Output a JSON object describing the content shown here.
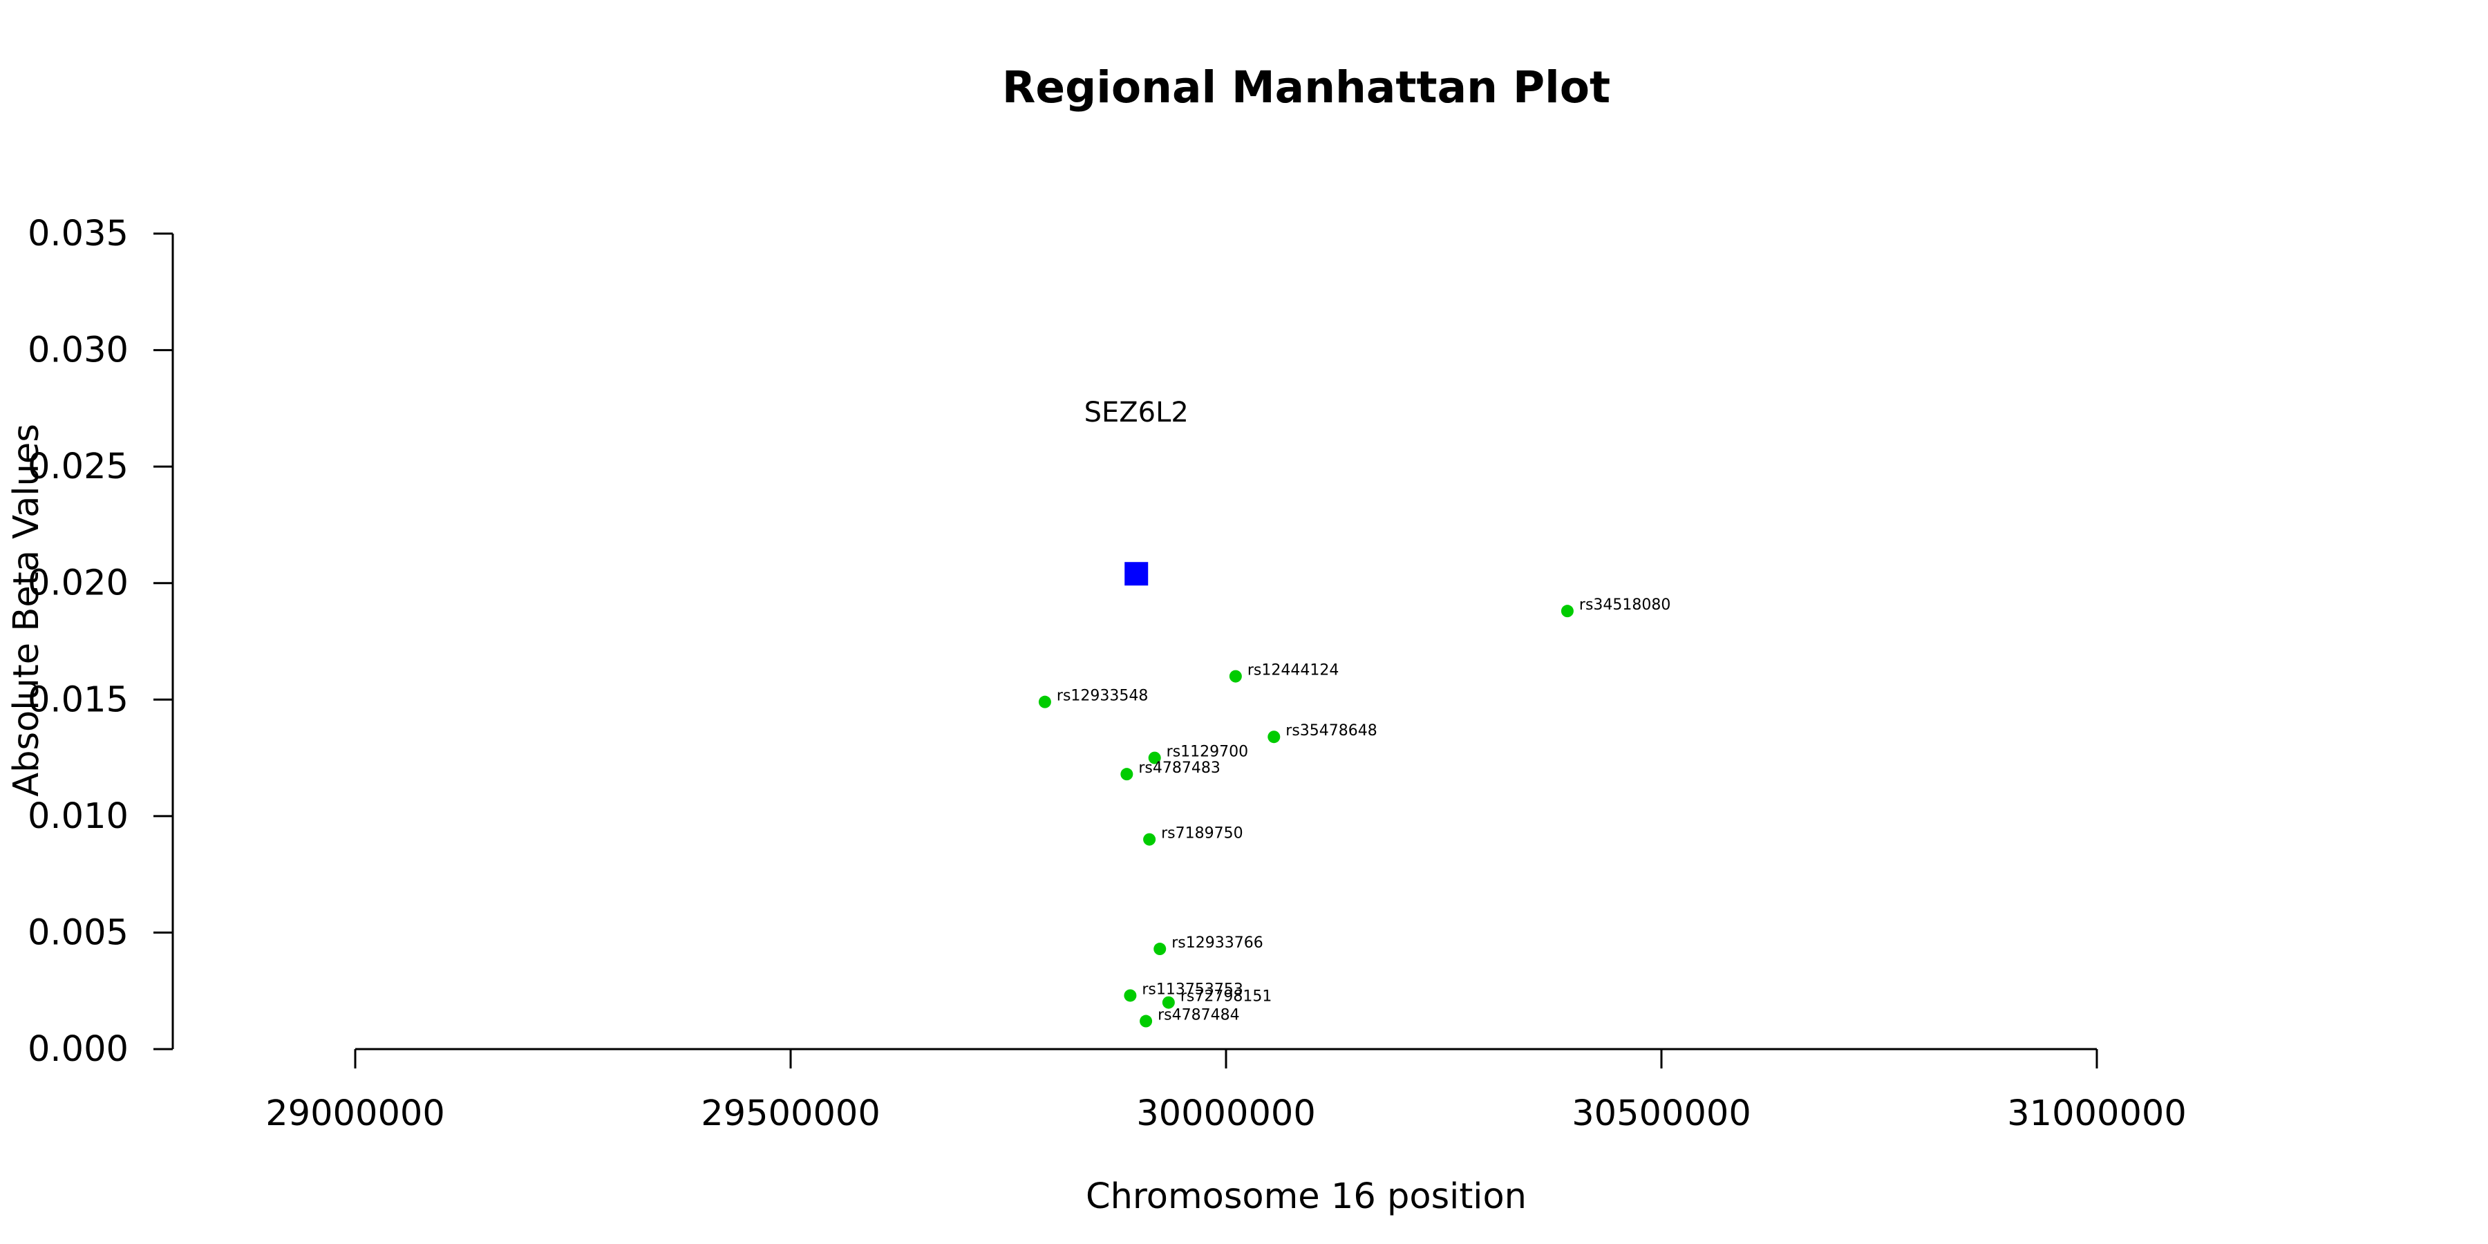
{
  "chart_data": {
    "type": "scatter",
    "title": "Regional Manhattan Plot",
    "xlabel": "Chromosome 16 position",
    "ylabel": "Absolute Beta Values",
    "xlim": [
      29000000,
      31000000
    ],
    "ylim": [
      0.0,
      0.035
    ],
    "x_ticks": [
      29000000,
      29500000,
      30000000,
      30500000,
      31000000
    ],
    "x_tick_labels": [
      "29000000",
      "29500000",
      "30000000",
      "30500000",
      "31000000"
    ],
    "y_ticks": [
      0.0,
      0.005,
      0.01,
      0.015,
      0.02,
      0.025,
      0.03,
      0.035
    ],
    "y_tick_labels": [
      "0.000",
      "0.005",
      "0.010",
      "0.015",
      "0.020",
      "0.025",
      "0.030",
      "0.035"
    ],
    "grid": false,
    "colors": {
      "gene": "#0000ff",
      "snp": "#00cc00"
    },
    "gene": {
      "name": "SEZ6L2",
      "x": 29897000,
      "y": 0.0204
    },
    "points": [
      {
        "label": "rs34518080",
        "x": 30392000,
        "y": 0.0188
      },
      {
        "label": "rs12444124",
        "x": 30011000,
        "y": 0.016
      },
      {
        "label": "rs12933548",
        "x": 29792000,
        "y": 0.0149
      },
      {
        "label": "rs35478648",
        "x": 30055000,
        "y": 0.0134
      },
      {
        "label": "rs1129700",
        "x": 29918000,
        "y": 0.0125
      },
      {
        "label": "rs4787483",
        "x": 29886000,
        "y": 0.0118
      },
      {
        "label": "rs7189750",
        "x": 29912000,
        "y": 0.009
      },
      {
        "label": "rs12933766",
        "x": 29924000,
        "y": 0.0043
      },
      {
        "label": "rs113753753",
        "x": 29890000,
        "y": 0.0023
      },
      {
        "label": "rs72798151",
        "x": 29934000,
        "y": 0.002
      },
      {
        "label": "rs4787484",
        "x": 29908000,
        "y": 0.0012
      }
    ]
  }
}
